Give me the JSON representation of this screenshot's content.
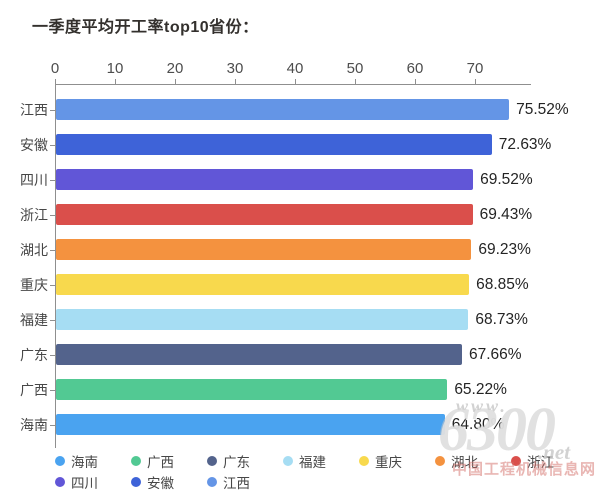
{
  "title": "一季度平均开工率top10省份：",
  "chart_data": {
    "type": "bar",
    "orientation": "horizontal",
    "title": "一季度平均开工率top10省份：",
    "categories": [
      "江西",
      "安徽",
      "四川",
      "浙江",
      "湖北",
      "重庆",
      "福建",
      "广东",
      "广西",
      "海南"
    ],
    "values": [
      75.52,
      72.63,
      69.52,
      69.43,
      69.23,
      68.85,
      68.73,
      67.66,
      65.22,
      64.8
    ],
    "value_labels": [
      "75.52%",
      "72.63%",
      "69.52%",
      "69.43%",
      "69.23%",
      "68.85%",
      "68.73%",
      "67.66%",
      "65.22%",
      "64.80%"
    ],
    "bar_colors": [
      "#6495E6",
      "#3E63D8",
      "#6156D7",
      "#DA4F4B",
      "#F4923F",
      "#F8D94D",
      "#A6DDF3",
      "#53638C",
      "#52C993",
      "#4AA3F0"
    ],
    "x_ticks": [
      0,
      10,
      20,
      30,
      40,
      50,
      60,
      70
    ],
    "x_range": [
      0,
      79
    ],
    "grid": false,
    "legend_position": "bottom",
    "legend": [
      {
        "label": "海南",
        "color": "#4AA3F0"
      },
      {
        "label": "广西",
        "color": "#52C993"
      },
      {
        "label": "广东",
        "color": "#53638C"
      },
      {
        "label": "福建",
        "color": "#A6DDF3"
      },
      {
        "label": "重庆",
        "color": "#F8D94D"
      },
      {
        "label": "湖北",
        "color": "#F4923F"
      },
      {
        "label": "浙江",
        "color": "#DA4F4B"
      },
      {
        "label": "四川",
        "color": "#6156D7"
      },
      {
        "label": "安徽",
        "color": "#3E63D8"
      },
      {
        "label": "江西",
        "color": "#6495E6"
      }
    ]
  },
  "watermark": {
    "line1": "www.",
    "line2": "6300",
    "line3": ".net",
    "line4": "中国工程机械信息网"
  }
}
